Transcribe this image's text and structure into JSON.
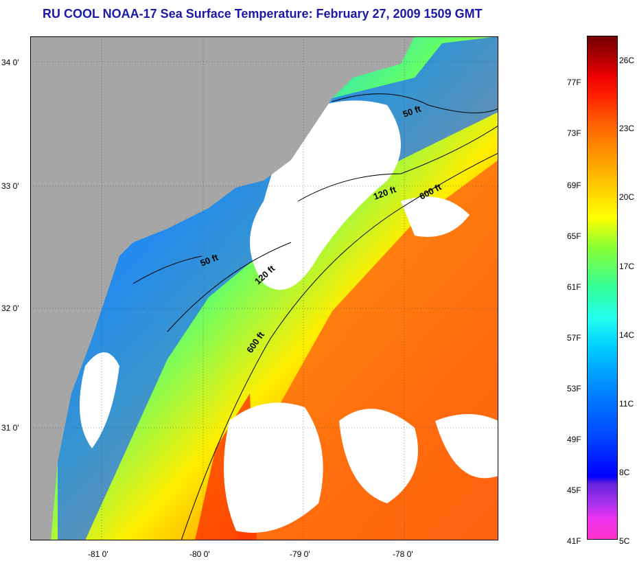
{
  "title": "RU COOL  NOAA-17  Sea Surface Temperature:  February 27, 2009 1509 GMT",
  "map": {
    "lat_labels": [
      "34 0'",
      "33 0'",
      "32 0'",
      "31 0'"
    ],
    "lon_labels": [
      "-81 0'",
      "-80 0'",
      "-79 0'",
      "-78 0'"
    ],
    "contour_labels": [
      "50 ft",
      "120 ft",
      "600 ft",
      "50 ft",
      "120 ft",
      "600 ft"
    ]
  },
  "colorbar": {
    "fahrenheit": [
      "77F",
      "73F",
      "69F",
      "65F",
      "61F",
      "57F",
      "53F",
      "49F",
      "45F",
      "41F"
    ],
    "celsius": [
      "26C",
      "23C",
      "20C",
      "17C",
      "14C",
      "11C",
      "8C",
      "5C"
    ]
  },
  "colors": {
    "land": "#a6a6a6",
    "title": "#1a1aa6",
    "cloud": "#ffffff"
  }
}
